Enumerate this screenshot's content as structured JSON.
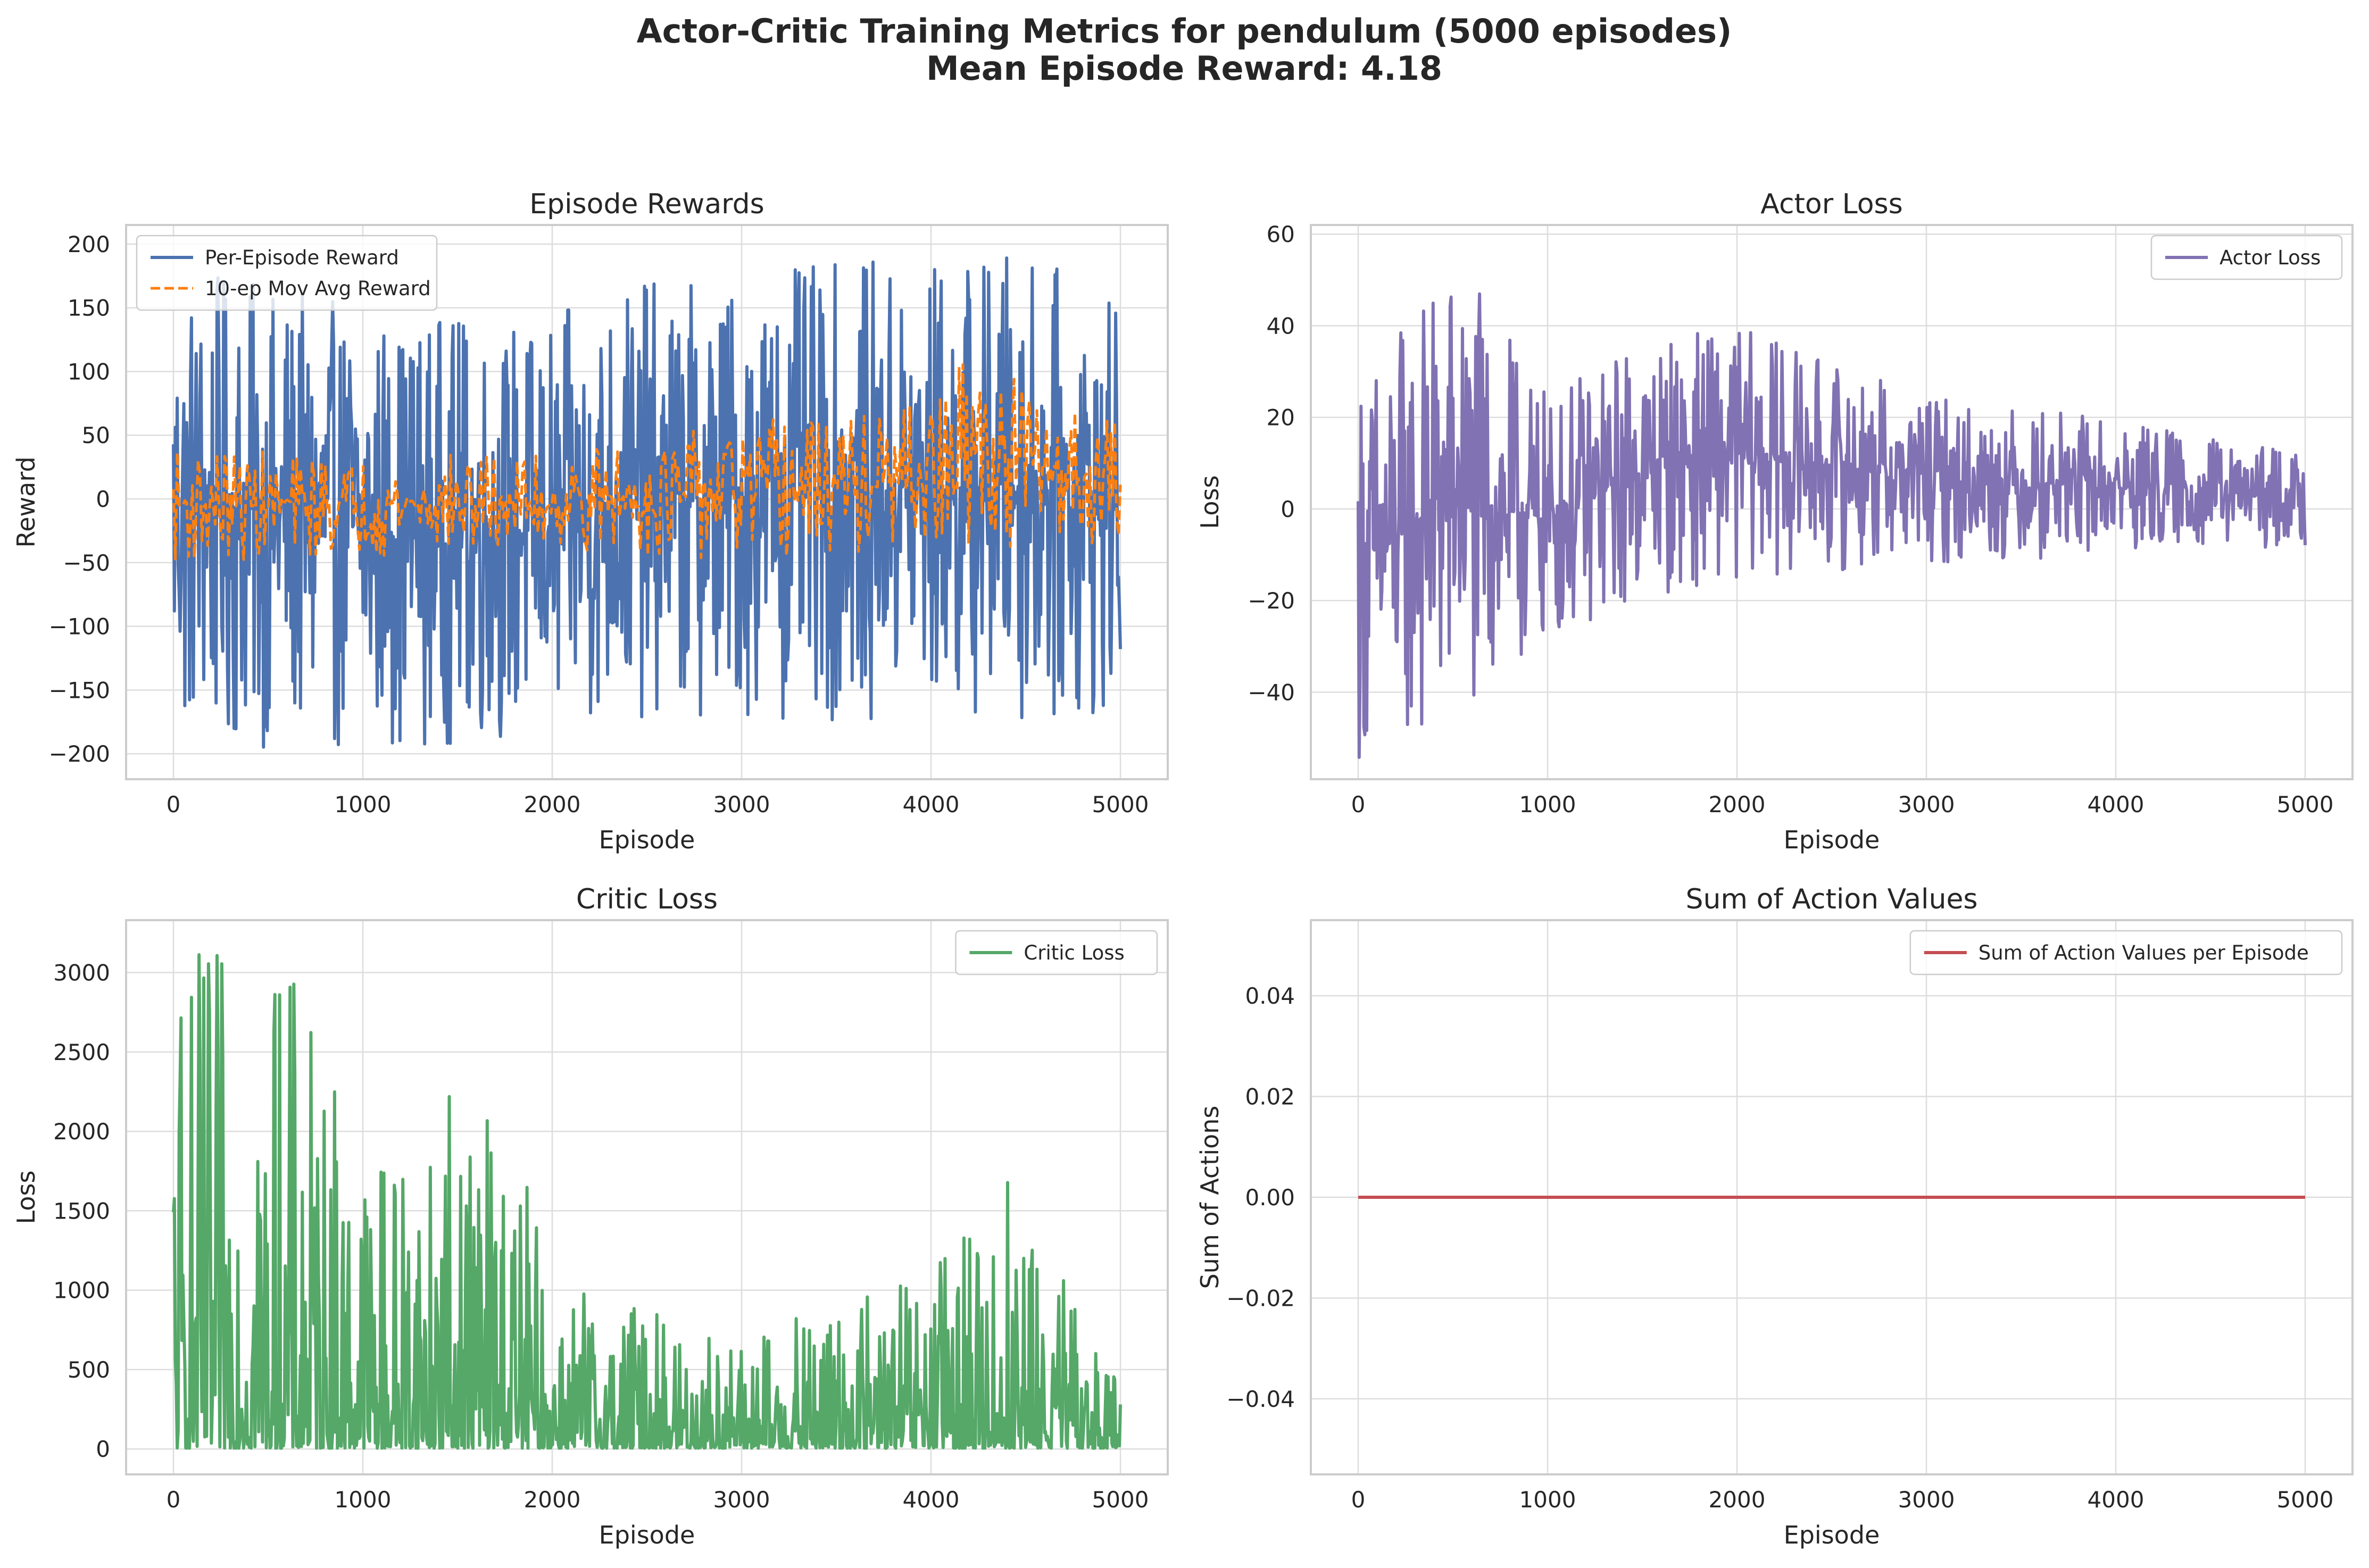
{
  "figure": {
    "suptitle_line1": "Actor-Critic Training Metrics for pendulum (5000 episodes)",
    "suptitle_line2": "Mean Episode Reward: 4.18"
  },
  "chart_data": [
    {
      "type": "line",
      "title": "Episode Rewards",
      "xlabel": "Episode",
      "ylabel": "Reward",
      "xlim": [
        -250,
        5250
      ],
      "ylim": [
        -220,
        215
      ],
      "xticks": [
        0,
        1000,
        2000,
        3000,
        4000,
        5000
      ],
      "yticks": [
        -200,
        -150,
        -100,
        -50,
        0,
        50,
        100,
        150,
        200
      ],
      "grid": true,
      "legend": "upper-left",
      "series": [
        {
          "name": "Per-Episode Reward",
          "color": "#4c72b0",
          "style": "solid",
          "generated": true,
          "approx": {
            "x_start": 0,
            "x_end": 5000,
            "points": 1000,
            "envelope": [
              [
                0,
                -198,
                185
              ],
              [
                1000,
                -195,
                150
              ],
              [
                2000,
                -190,
                140
              ],
              [
                2300,
                -175,
                170
              ],
              [
                3000,
                -170,
                175
              ],
              [
                3500,
                -175,
                185
              ],
              [
                4000,
                -175,
                190
              ],
              [
                4500,
                -175,
                198
              ],
              [
                5000,
                -172,
                150
              ]
            ]
          }
        },
        {
          "name": "10-ep Mov Avg Reward",
          "color": "#ff7f0e",
          "style": "dashed",
          "generated": true,
          "approx": {
            "x_start": 0,
            "x_end": 5000,
            "points": 500,
            "envelope": [
              [
                0,
                -50,
                40
              ],
              [
                1000,
                -45,
                35
              ],
              [
                2000,
                -40,
                35
              ],
              [
                3000,
                -50,
                60
              ],
              [
                4000,
                -45,
                75
              ],
              [
                4200,
                -40,
                115
              ],
              [
                5000,
                -35,
                60
              ]
            ]
          }
        }
      ]
    },
    {
      "type": "line",
      "title": "Actor Loss",
      "xlabel": "Episode",
      "ylabel": "Loss",
      "xlim": [
        -250,
        5250
      ],
      "ylim": [
        -59,
        62
      ],
      "xticks": [
        0,
        1000,
        2000,
        3000,
        4000,
        5000
      ],
      "yticks": [
        -40,
        -20,
        0,
        20,
        40,
        60
      ],
      "grid": true,
      "legend": "upper-right",
      "series": [
        {
          "name": "Actor Loss",
          "color": "#8172b3",
          "style": "solid",
          "generated": true,
          "approx": {
            "x_start": 0,
            "x_end": 5000,
            "points": 1000,
            "envelope": [
              [
                0,
                -55,
                30
              ],
              [
                500,
                -50,
                56
              ],
              [
                1000,
                -30,
                25
              ],
              [
                1500,
                -20,
                38
              ],
              [
                2000,
                -15,
                40
              ],
              [
                3000,
                -12,
                25
              ],
              [
                4000,
                -10,
                20
              ],
              [
                5000,
                -8,
                12
              ]
            ]
          }
        }
      ]
    },
    {
      "type": "line",
      "title": "Critic Loss",
      "xlabel": "Episode",
      "ylabel": "Loss",
      "xlim": [
        -250,
        5250
      ],
      "ylim": [
        -160,
        3330
      ],
      "xticks": [
        0,
        1000,
        2000,
        3000,
        4000,
        5000
      ],
      "yticks": [
        0,
        500,
        1000,
        1500,
        2000,
        2500,
        3000
      ],
      "grid": true,
      "legend": "upper-right",
      "series": [
        {
          "name": "Critic Loss",
          "color": "#55a868",
          "style": "solid",
          "generated": true,
          "approx": {
            "x_start": 0,
            "x_end": 5000,
            "points": 1000,
            "envelope": [
              [
                0,
                5,
                3170
              ],
              [
                600,
                5,
                3110
              ],
              [
                1000,
                5,
                2000
              ],
              [
                1700,
                5,
                2340
              ],
              [
                2000,
                5,
                1100
              ],
              [
                3000,
                5,
                700
              ],
              [
                4000,
                5,
                1150
              ],
              [
                4400,
                5,
                1780
              ],
              [
                5000,
                5,
                400
              ]
            ]
          }
        }
      ]
    },
    {
      "type": "line",
      "title": "Sum of Action Values",
      "xlabel": "Episode",
      "ylabel": "Sum of Actions",
      "xlim": [
        -250,
        5250
      ],
      "ylim": [
        -0.055,
        0.055
      ],
      "xticks": [
        0,
        1000,
        2000,
        3000,
        4000,
        5000
      ],
      "yticks": [
        -0.04,
        -0.02,
        0.0,
        0.02,
        0.04
      ],
      "ytick_labels": [
        "−0.04",
        "−0.02",
        "0.00",
        "0.02",
        "0.04"
      ],
      "grid": true,
      "legend": "upper-right",
      "series": [
        {
          "name": "Sum of Action Values per Episode",
          "color": "#c44e52",
          "style": "solid",
          "x": [
            0,
            5000
          ],
          "y": [
            0,
            0
          ]
        }
      ]
    }
  ]
}
